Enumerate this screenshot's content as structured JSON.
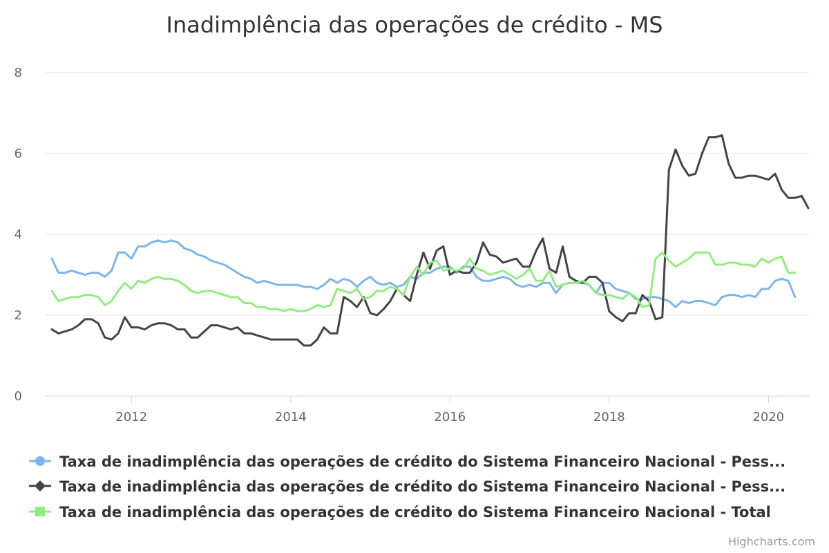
{
  "chart_data": {
    "type": "line",
    "title": "Inadimplência das operações de crédito - MS",
    "xlabel": "",
    "ylabel": "",
    "ylim": [
      0,
      8
    ],
    "yticks": [
      "0",
      "2",
      "4",
      "6",
      "8"
    ],
    "xticks": [
      "2012",
      "2014",
      "2016",
      "2018",
      "2020"
    ],
    "x_start": "2011-01",
    "x_step": "month",
    "xlim": [
      "2011-01",
      "2020-06"
    ],
    "grid": true,
    "legend_position": "bottom",
    "series": [
      {
        "name": "Taxa de inadimplência das operações de crédito do Sistema Financeiro Nacional - Pess...",
        "color": "#7cb5ec",
        "marker": "circle",
        "values": [
          3.4,
          3.05,
          3.05,
          3.1,
          3.05,
          3.0,
          3.05,
          3.05,
          2.95,
          3.1,
          3.55,
          3.55,
          3.4,
          3.7,
          3.7,
          3.8,
          3.85,
          3.8,
          3.85,
          3.8,
          3.65,
          3.6,
          3.5,
          3.45,
          3.35,
          3.3,
          3.25,
          3.15,
          3.05,
          2.95,
          2.9,
          2.8,
          2.85,
          2.8,
          2.75,
          2.75,
          2.75,
          2.75,
          2.7,
          2.7,
          2.65,
          2.75,
          2.9,
          2.8,
          2.9,
          2.85,
          2.7,
          2.85,
          2.95,
          2.8,
          2.75,
          2.8,
          2.7,
          2.75,
          2.95,
          2.9,
          3.05,
          3.05,
          3.15,
          3.2,
          3.2,
          3.05,
          3.2,
          3.2,
          2.95,
          2.85,
          2.85,
          2.9,
          2.95,
          2.9,
          2.75,
          2.7,
          2.75,
          2.7,
          2.8,
          2.8,
          2.55,
          2.75,
          2.8,
          2.8,
          2.8,
          2.75,
          2.55,
          2.8,
          2.8,
          2.65,
          2.6,
          2.55,
          2.4,
          2.4,
          2.45,
          2.45,
          2.4,
          2.35,
          2.2,
          2.35,
          2.3,
          2.35,
          2.35,
          2.3,
          2.25,
          2.45,
          2.5,
          2.5,
          2.45,
          2.5,
          2.45,
          2.65,
          2.65,
          2.85,
          2.9,
          2.85,
          2.45
        ]
      },
      {
        "name": "Taxa de inadimplência das operações de crédito do Sistema Financeiro Nacional - Pess...",
        "color": "#434348",
        "marker": "diamond",
        "values": [
          1.65,
          1.55,
          1.6,
          1.65,
          1.75,
          1.9,
          1.9,
          1.8,
          1.45,
          1.4,
          1.55,
          1.95,
          1.7,
          1.7,
          1.65,
          1.75,
          1.8,
          1.8,
          1.75,
          1.65,
          1.65,
          1.45,
          1.45,
          1.6,
          1.75,
          1.75,
          1.7,
          1.65,
          1.7,
          1.55,
          1.55,
          1.5,
          1.45,
          1.4,
          1.4,
          1.4,
          1.4,
          1.4,
          1.25,
          1.25,
          1.4,
          1.7,
          1.55,
          1.55,
          2.45,
          2.35,
          2.2,
          2.45,
          2.05,
          2.0,
          2.15,
          2.35,
          2.65,
          2.5,
          2.35,
          3.0,
          3.55,
          3.15,
          3.6,
          3.7,
          3.0,
          3.1,
          3.05,
          3.05,
          3.3,
          3.8,
          3.5,
          3.45,
          3.3,
          3.35,
          3.4,
          3.2,
          3.2,
          3.6,
          3.9,
          3.15,
          3.05,
          3.7,
          2.95,
          2.85,
          2.8,
          2.95,
          2.95,
          2.8,
          2.1,
          1.95,
          1.85,
          2.05,
          2.05,
          2.5,
          2.35,
          1.9,
          1.95,
          5.6,
          6.1,
          5.7,
          5.45,
          5.5,
          6.0,
          6.4,
          6.4,
          6.45,
          5.75,
          5.4,
          5.4,
          5.45,
          5.45,
          5.4,
          5.35,
          5.5,
          5.1,
          4.9,
          4.9,
          4.95,
          4.65
        ]
      },
      {
        "name": "Taxa de inadimplência das operações de crédito do Sistema Financeiro Nacional - Total",
        "color": "#90ed7d",
        "marker": "square",
        "values": [
          2.6,
          2.35,
          2.4,
          2.45,
          2.45,
          2.5,
          2.5,
          2.45,
          2.25,
          2.35,
          2.6,
          2.8,
          2.65,
          2.85,
          2.8,
          2.9,
          2.95,
          2.9,
          2.9,
          2.85,
          2.75,
          2.6,
          2.55,
          2.6,
          2.6,
          2.55,
          2.5,
          2.45,
          2.45,
          2.3,
          2.3,
          2.2,
          2.2,
          2.15,
          2.15,
          2.1,
          2.15,
          2.1,
          2.1,
          2.15,
          2.25,
          2.2,
          2.25,
          2.65,
          2.6,
          2.55,
          2.65,
          2.4,
          2.45,
          2.6,
          2.6,
          2.7,
          2.65,
          2.5,
          2.95,
          3.2,
          3.0,
          3.3,
          3.35,
          3.1,
          3.15,
          3.1,
          3.15,
          3.4,
          3.15,
          3.1,
          3.0,
          3.05,
          3.1,
          3.0,
          2.9,
          3.0,
          3.15,
          2.85,
          2.85,
          3.1,
          2.7,
          2.75,
          2.8,
          2.8,
          2.85,
          2.75,
          2.55,
          2.5,
          2.5,
          2.45,
          2.4,
          2.55,
          2.45,
          2.2,
          2.25,
          3.4,
          3.55,
          3.35,
          3.2,
          3.3,
          3.4,
          3.55,
          3.55,
          3.55,
          3.25,
          3.25,
          3.3,
          3.3,
          3.25,
          3.25,
          3.2,
          3.4,
          3.3,
          3.4,
          3.45,
          3.05,
          3.05
        ]
      }
    ]
  },
  "credits": "Highcharts.com"
}
